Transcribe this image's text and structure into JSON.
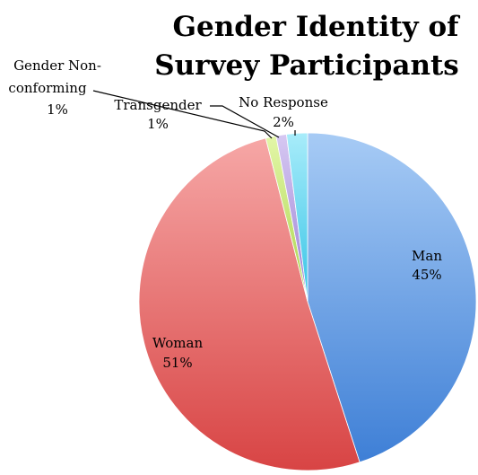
{
  "chart_data": {
    "type": "pie",
    "title_lines": [
      "Gender Identity of",
      "Survey Participants"
    ],
    "slices": [
      {
        "label": "Man",
        "label_lines": [
          "Man"
        ],
        "value": 45,
        "percent_label": "45%",
        "color": "#5b9be6"
      },
      {
        "label": "Woman",
        "label_lines": [
          "Woman"
        ],
        "value": 51,
        "percent_label": "51%",
        "color": "#e45f60"
      },
      {
        "label": "Gender Non-conforming",
        "label_lines": [
          "Gender Non-",
          "conforming"
        ],
        "value": 1,
        "percent_label": "1%",
        "color": "#c9ea7a"
      },
      {
        "label": "Transgender",
        "label_lines": [
          "Transgender"
        ],
        "value": 1,
        "percent_label": "1%",
        "color": "#b9a3e0"
      },
      {
        "label": "No Response",
        "label_lines": [
          "No Response"
        ],
        "value": 2,
        "percent_label": "2%",
        "color": "#5fd7ef"
      }
    ],
    "legend": "none"
  }
}
